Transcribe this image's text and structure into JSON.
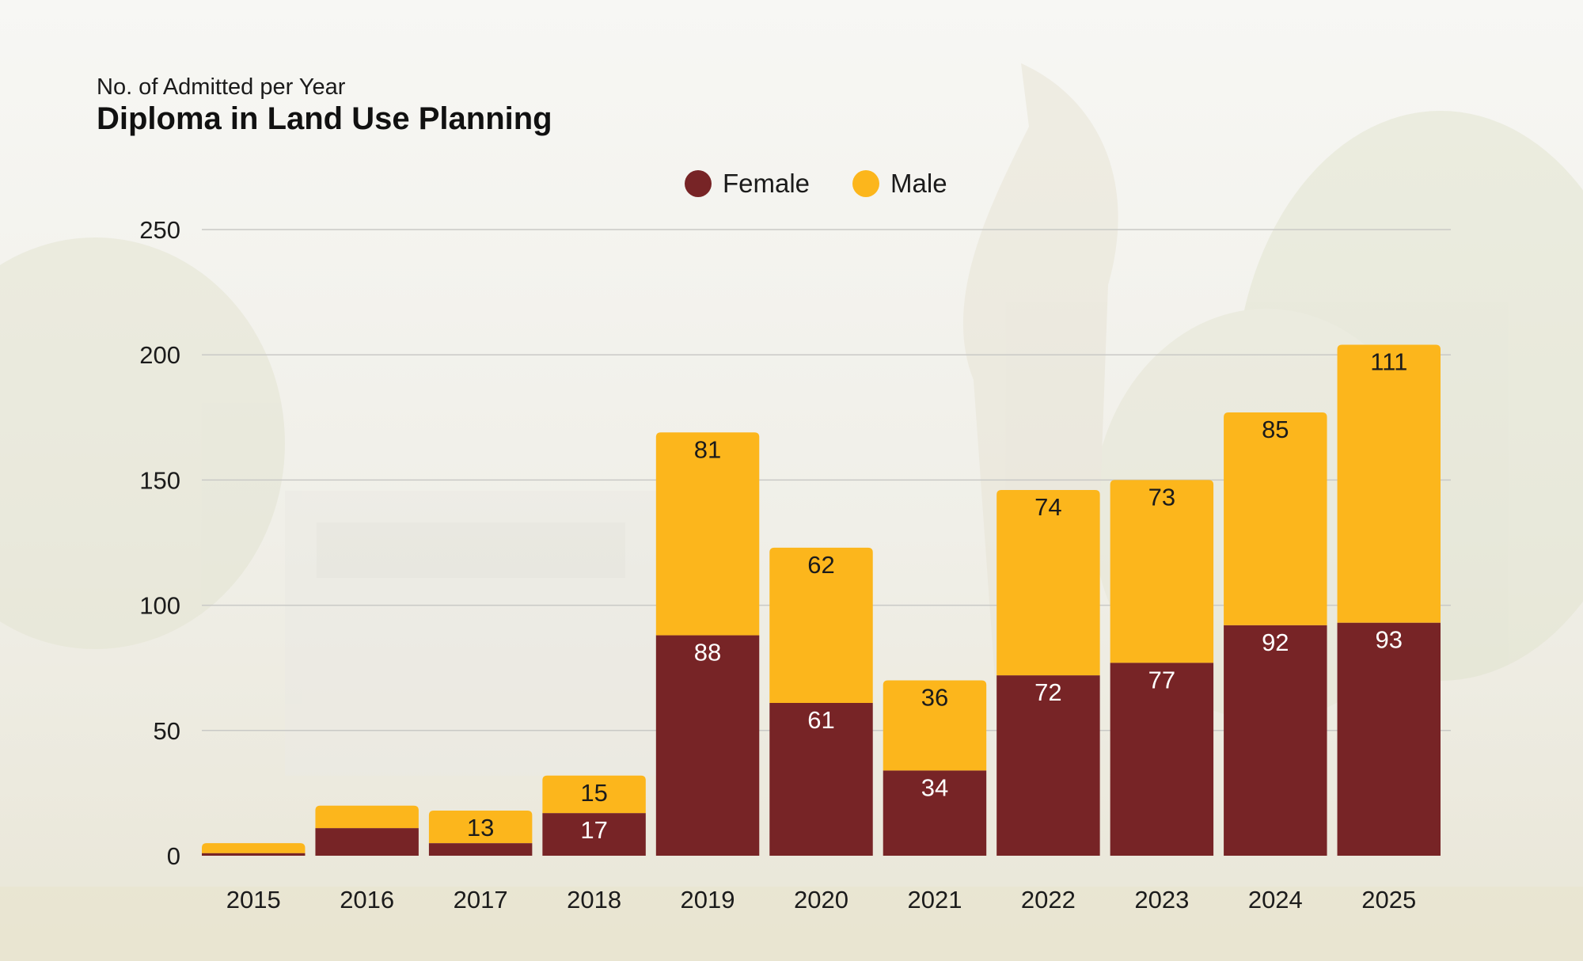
{
  "colors": {
    "female": "#772426",
    "male": "#fcb61c",
    "grid": "#c9c9c6"
  },
  "chart_data": {
    "type": "bar",
    "stacked": true,
    "subtitle": "No. of Admitted per Year",
    "title": "Diploma in Land Use Planning",
    "categories": [
      "2015",
      "2016",
      "2017",
      "2018",
      "2019",
      "2020",
      "2021",
      "2022",
      "2023",
      "2024",
      "2025"
    ],
    "series": [
      {
        "name": "Female",
        "values": [
          1,
          11,
          5,
          17,
          88,
          61,
          34,
          72,
          77,
          92,
          93
        ],
        "labels": [
          null,
          null,
          null,
          "17",
          "88",
          "61",
          "34",
          "72",
          "77",
          "92",
          "93"
        ]
      },
      {
        "name": "Male",
        "values": [
          4,
          9,
          13,
          15,
          81,
          62,
          36,
          74,
          73,
          85,
          111
        ],
        "labels": [
          null,
          null,
          "13",
          "15",
          "81",
          "62",
          "36",
          "74",
          "73",
          "85",
          "111"
        ]
      }
    ],
    "ylim": [
      0,
      250
    ],
    "yticks": [
      0,
      50,
      100,
      150,
      200,
      250
    ],
    "legend": "top-center",
    "grid": true
  }
}
